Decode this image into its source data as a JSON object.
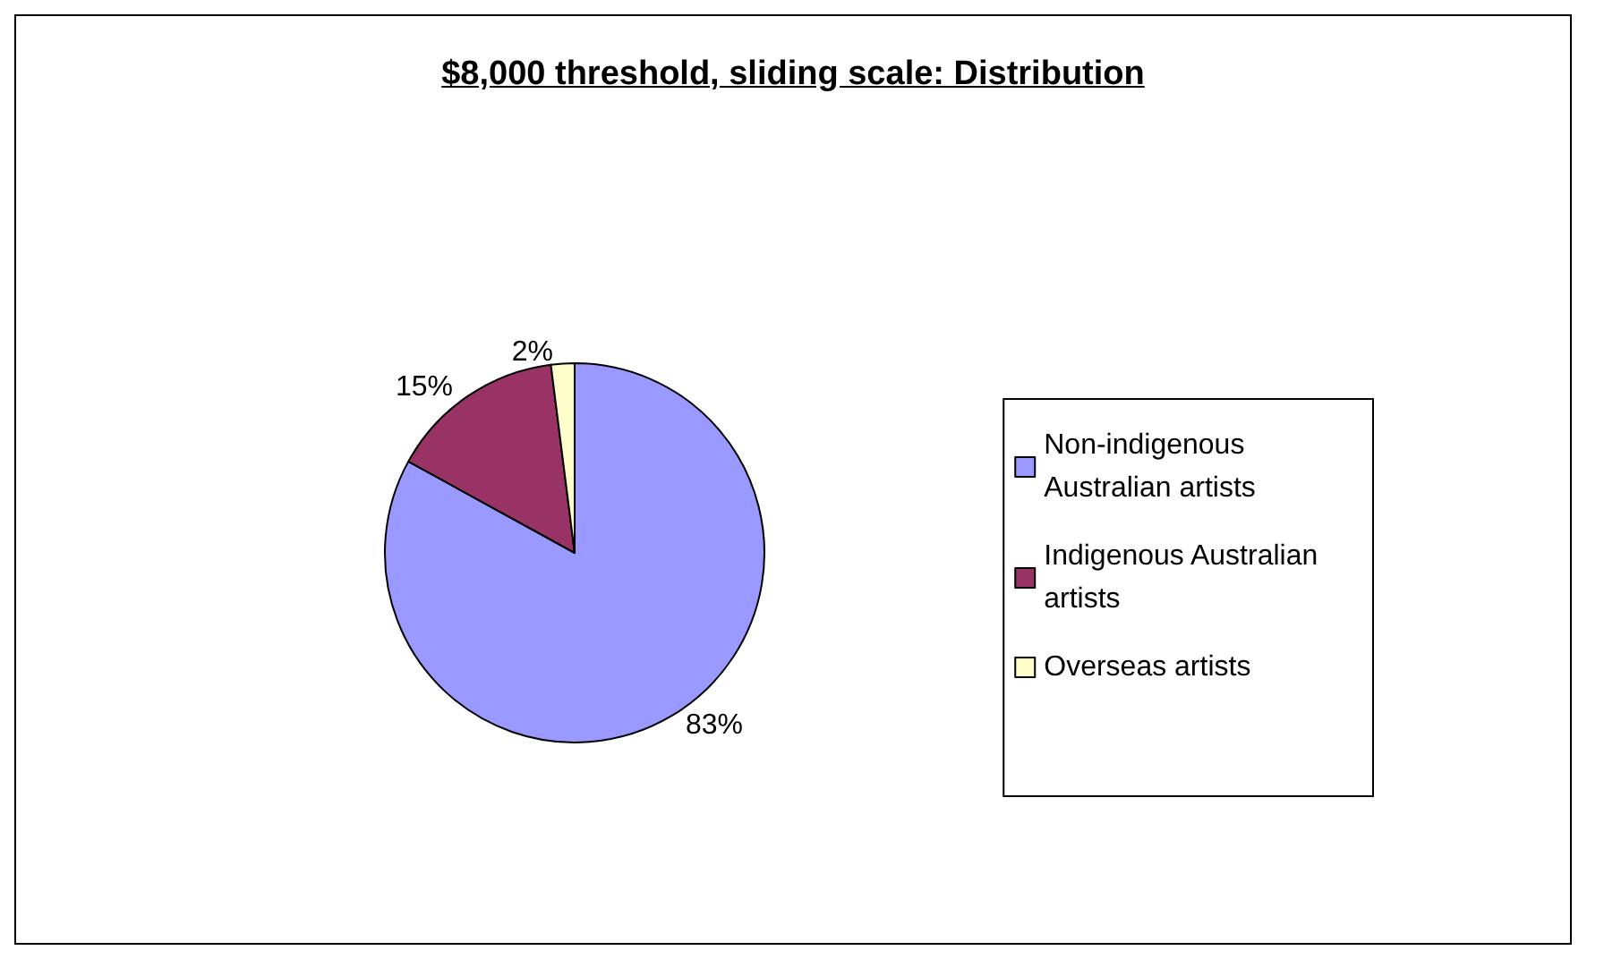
{
  "chart_data": {
    "type": "pie",
    "title": "$8,000 threshold, sliding scale: Distribution",
    "categories": [
      "Non-indigenous Australian artists",
      "Indigenous Australian artists",
      "Overseas artists"
    ],
    "values": [
      83,
      15,
      2
    ],
    "value_labels": [
      "83%",
      "15%",
      "2%"
    ],
    "colors": [
      "#9999ff",
      "#993366",
      "#ffffcc"
    ],
    "data_labels": false,
    "legend": "right"
  }
}
